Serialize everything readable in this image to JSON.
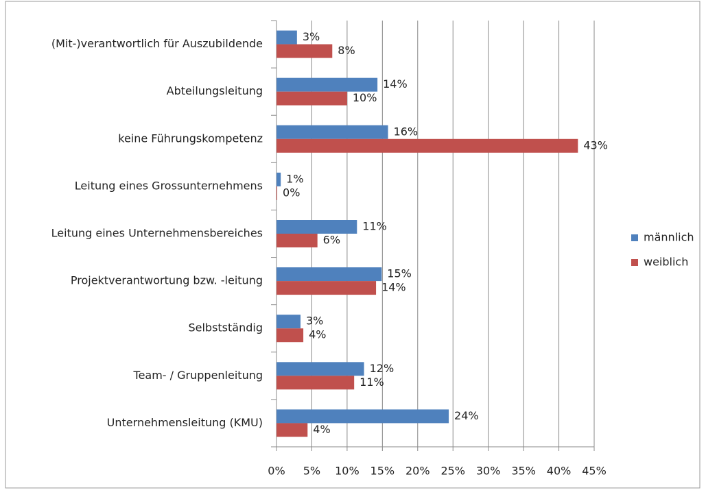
{
  "chart_data": {
    "type": "bar",
    "orientation": "horizontal",
    "categories": [
      "(Mit-)verantwortlich für Auszubildende",
      "Abteilungsleitung",
      "keine Führungskompetenz",
      "Leitung eines Grossunternehmens",
      "Leitung eines Unternehmensbereiches",
      "Projektverantwortung bzw. -leitung",
      "Selbstständig",
      "Team- / Gruppenleitung",
      "Unternehmensleitung (KMU)"
    ],
    "series": [
      {
        "name": "männlich",
        "color": "#4f81bd",
        "values": [
          2.9,
          14.3,
          15.8,
          0.6,
          11.4,
          14.9,
          3.4,
          12.4,
          24.4
        ],
        "value_labels": [
          "3%",
          "14%",
          "16%",
          "1%",
          "11%",
          "15%",
          "3%",
          "12%",
          "24%"
        ]
      },
      {
        "name": "weiblich",
        "color": "#c0504d",
        "values": [
          7.9,
          10.0,
          42.7,
          0.1,
          5.8,
          14.1,
          3.8,
          11.0,
          4.4
        ],
        "value_labels": [
          "8%",
          "10%",
          "43%",
          "0%",
          "6%",
          "14%",
          "4%",
          "11%",
          "4%"
        ]
      }
    ],
    "xlim": [
      0,
      45
    ],
    "xticks": [
      {
        "value": 0,
        "label": "0%"
      },
      {
        "value": 5,
        "label": "5%"
      },
      {
        "value": 10,
        "label": "10%"
      },
      {
        "value": 15,
        "label": "15%"
      },
      {
        "value": 20,
        "label": "20%"
      },
      {
        "value": 25,
        "label": "25%"
      },
      {
        "value": 30,
        "label": "30%"
      },
      {
        "value": 35,
        "label": "35%"
      },
      {
        "value": 40,
        "label": "40%"
      },
      {
        "value": 45,
        "label": "45%"
      }
    ],
    "grid": true,
    "legend": "right"
  }
}
